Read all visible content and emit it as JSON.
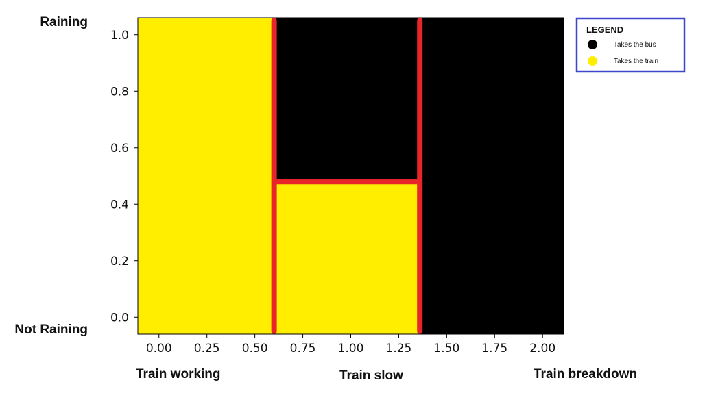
{
  "chart_data": {
    "type": "heatmap",
    "title": "",
    "xlabel": "",
    "ylabel": "",
    "xlim": [
      -0.11,
      2.11
    ],
    "ylim": [
      -0.06,
      1.06
    ],
    "xticks": [
      0.0,
      0.25,
      0.5,
      0.75,
      1.0,
      1.25,
      1.5,
      1.75,
      2.0
    ],
    "xtick_labels": [
      "0.00",
      "0.25",
      "0.50",
      "0.75",
      "1.00",
      "1.25",
      "1.50",
      "1.75",
      "2.00"
    ],
    "yticks": [
      0.0,
      0.2,
      0.4,
      0.6,
      0.8,
      1.0
    ],
    "ytick_labels": [
      "0.0",
      "0.2",
      "0.4",
      "0.6",
      "0.8",
      "1.0"
    ],
    "grid": false,
    "regions": [
      {
        "decision": "Takes the train",
        "x_range": [
          -0.11,
          0.6
        ],
        "y_range": [
          -0.06,
          1.06
        ],
        "color": "#FFEE00"
      },
      {
        "decision": "Takes the train",
        "x_range": [
          0.6,
          1.36
        ],
        "y_range": [
          -0.06,
          0.48
        ],
        "color": "#FFEE00"
      },
      {
        "decision": "Takes the bus",
        "x_range": [
          0.6,
          1.36
        ],
        "y_range": [
          0.48,
          1.06
        ],
        "color": "#000000"
      },
      {
        "decision": "Takes the bus",
        "x_range": [
          1.36,
          2.11
        ],
        "y_range": [
          -0.06,
          1.06
        ],
        "color": "#000000"
      }
    ],
    "boundaries": [
      {
        "x": [
          0.6,
          0.6
        ],
        "y": [
          -0.05,
          1.05
        ]
      },
      {
        "x": [
          1.36,
          1.36
        ],
        "y": [
          -0.05,
          1.05
        ]
      },
      {
        "x": [
          0.6,
          1.36
        ],
        "y": [
          0.48,
          0.48
        ]
      }
    ],
    "boundary_color": "#E8262A",
    "legend": {
      "title": "LEGEND",
      "placement": "outside-top-right",
      "border_color": "#3F48CC",
      "entries": [
        {
          "label": "Takes the bus",
          "color": "#000000"
        },
        {
          "label": "Takes the train",
          "color": "#FFEE00"
        }
      ]
    },
    "annotations": {
      "y_top": "Raining",
      "y_bottom": "Not Raining",
      "x_left": "Train working",
      "x_middle": "Train slow",
      "x_right": "Train breakdown"
    }
  }
}
